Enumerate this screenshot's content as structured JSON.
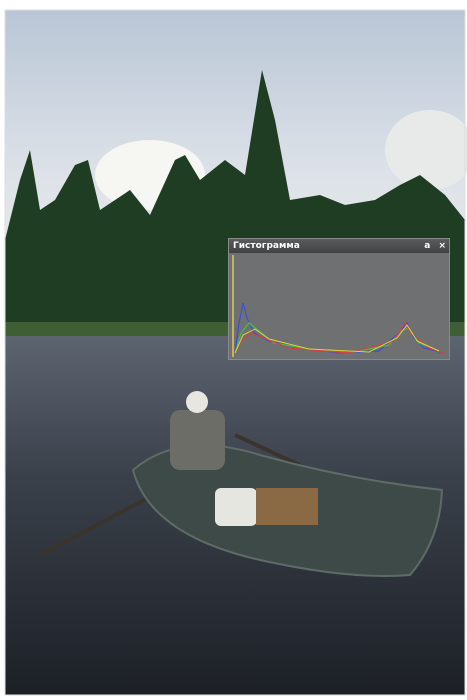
{
  "panel": {
    "title": "Гистограмма",
    "buttons": [
      "a",
      "×"
    ]
  }
}
